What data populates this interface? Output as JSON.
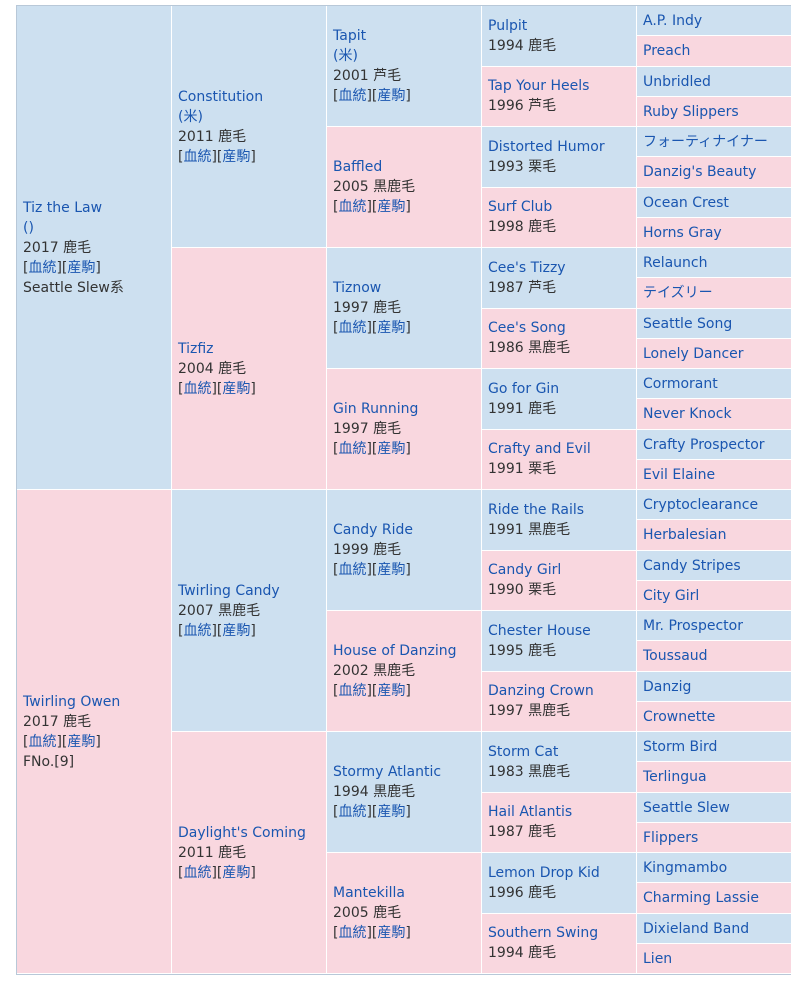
{
  "colors": {
    "sire_bg": "#cde0f0",
    "dam_bg": "#f9d7df",
    "link": "#1a56b0",
    "text": "#333333"
  },
  "links": {
    "bloodline": "血統",
    "progeny": "産駒"
  },
  "gen1": {
    "sire": {
      "name": "Tiz the Law",
      "origin": "()",
      "birth": "2017 鹿毛",
      "line": "Seattle Slew系"
    },
    "dam": {
      "name": "Twirling Owen",
      "birth": "2017 鹿毛",
      "family": "FNo.[9]"
    }
  },
  "gen2": [
    {
      "name": "Constitution",
      "origin": "(米)",
      "birth": "2011 鹿毛"
    },
    {
      "name": "Tizfiz",
      "birth": "2004 鹿毛"
    },
    {
      "name": "Twirling Candy",
      "birth": "2007 黒鹿毛"
    },
    {
      "name": "Daylight's Coming",
      "birth": "2011 鹿毛"
    }
  ],
  "gen3": [
    {
      "name": "Tapit",
      "origin": "(米)",
      "birth": "2001 芦毛"
    },
    {
      "name": "Baffled",
      "birth": "2005 黒鹿毛"
    },
    {
      "name": "Tiznow",
      "birth": "1997 鹿毛"
    },
    {
      "name": "Gin Running",
      "birth": "1997 鹿毛"
    },
    {
      "name": "Candy Ride",
      "birth": "1999 鹿毛"
    },
    {
      "name": "House of Danzing",
      "birth": "2002 黒鹿毛"
    },
    {
      "name": "Stormy Atlantic",
      "birth": "1994 黒鹿毛"
    },
    {
      "name": "Mantekilla",
      "birth": "2005 鹿毛"
    }
  ],
  "gen4": [
    {
      "name": "Pulpit",
      "birth": "1994 鹿毛"
    },
    {
      "name": "Tap Your Heels",
      "birth": "1996 芦毛"
    },
    {
      "name": "Distorted Humor",
      "birth": "1993 栗毛"
    },
    {
      "name": "Surf Club",
      "birth": "1998 鹿毛"
    },
    {
      "name": "Cee's Tizzy",
      "birth": "1987 芦毛"
    },
    {
      "name": "Cee's Song",
      "birth": "1986 黒鹿毛"
    },
    {
      "name": "Go for Gin",
      "birth": "1991 鹿毛"
    },
    {
      "name": "Crafty and Evil",
      "birth": "1991 栗毛"
    },
    {
      "name": "Ride the Rails",
      "birth": "1991 黒鹿毛"
    },
    {
      "name": "Candy Girl",
      "birth": "1990 栗毛"
    },
    {
      "name": "Chester House",
      "birth": "1995 鹿毛"
    },
    {
      "name": "Danzing Crown",
      "birth": "1997 黒鹿毛"
    },
    {
      "name": "Storm Cat",
      "birth": "1983 黒鹿毛"
    },
    {
      "name": "Hail Atlantis",
      "birth": "1987 鹿毛"
    },
    {
      "name": "Lemon Drop Kid",
      "birth": "1996 鹿毛"
    },
    {
      "name": "Southern Swing",
      "birth": "1994 鹿毛"
    }
  ],
  "gen5": [
    {
      "name": "A.P. Indy"
    },
    {
      "name": "Preach"
    },
    {
      "name": "Unbridled"
    },
    {
      "name": "Ruby Slippers"
    },
    {
      "name": "フォーティナイナー"
    },
    {
      "name": "Danzig's Beauty"
    },
    {
      "name": "Ocean Crest"
    },
    {
      "name": "Horns Gray"
    },
    {
      "name": "Relaunch"
    },
    {
      "name": "テイズリー"
    },
    {
      "name": "Seattle Song"
    },
    {
      "name": "Lonely Dancer"
    },
    {
      "name": "Cormorant"
    },
    {
      "name": "Never Knock"
    },
    {
      "name": "Crafty Prospector"
    },
    {
      "name": "Evil Elaine"
    },
    {
      "name": "Cryptoclearance"
    },
    {
      "name": "Herbalesian"
    },
    {
      "name": "Candy Stripes"
    },
    {
      "name": "City Girl"
    },
    {
      "name": "Mr. Prospector"
    },
    {
      "name": "Toussaud"
    },
    {
      "name": "Danzig"
    },
    {
      "name": "Crownette"
    },
    {
      "name": "Storm Bird"
    },
    {
      "name": "Terlingua"
    },
    {
      "name": "Seattle Slew"
    },
    {
      "name": "Flippers"
    },
    {
      "name": "Kingmambo"
    },
    {
      "name": "Charming Lassie"
    },
    {
      "name": "Dixieland Band"
    },
    {
      "name": "Lien"
    }
  ]
}
